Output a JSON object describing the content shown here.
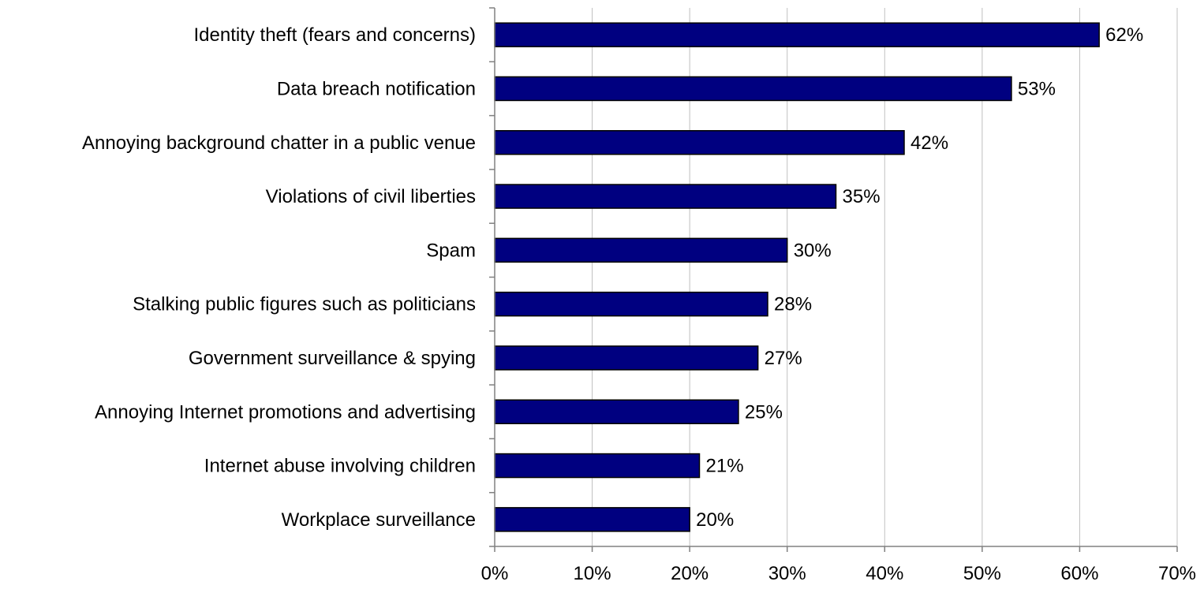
{
  "chart_data": {
    "type": "bar",
    "orientation": "horizontal",
    "title": "",
    "xlabel": "",
    "ylabel": "",
    "categories": [
      "Identity theft (fears and concerns)",
      "Data breach notification",
      "Annoying background chatter in a public venue",
      "Violations of civil liberties",
      "Spam",
      "Stalking public figures such as politicians",
      "Government surveillance & spying",
      "Annoying Internet promotions and advertising",
      "Internet abuse involving children",
      "Workplace surveillance"
    ],
    "values": [
      62,
      53,
      42,
      35,
      30,
      28,
      27,
      25,
      21,
      20
    ],
    "value_labels": [
      "62%",
      "53%",
      "42%",
      "35%",
      "30%",
      "28%",
      "27%",
      "25%",
      "21%",
      "20%"
    ],
    "xlim": [
      0,
      70
    ],
    "x_ticks": [
      0,
      10,
      20,
      30,
      40,
      50,
      60,
      70
    ],
    "x_tick_labels": [
      "0%",
      "10%",
      "20%",
      "30%",
      "40%",
      "50%",
      "60%",
      "70%"
    ],
    "grid": "vertical",
    "legend": "none",
    "colors": {
      "bar_fill": "#000080",
      "bar_stroke": "#000000",
      "grid": "#c0c0c0",
      "axis": "#808080"
    }
  }
}
